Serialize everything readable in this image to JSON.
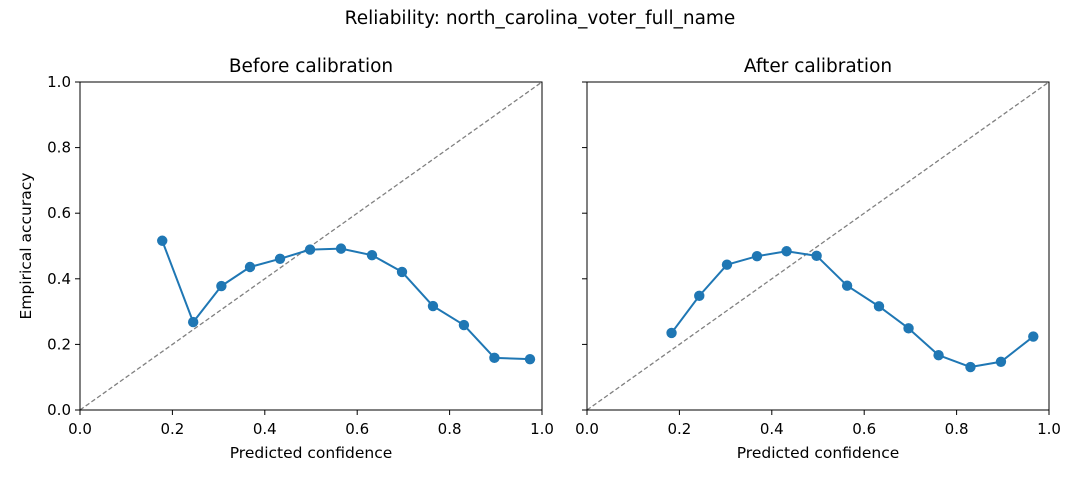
{
  "suptitle": "Reliability: north_carolina_voter_full_name",
  "style": {
    "series_color": "#1f77b4",
    "diagonal_color": "#808080"
  },
  "chart_data": [
    {
      "type": "line",
      "title": "Before calibration",
      "xlabel": "Predicted confidence",
      "ylabel": "Empirical accuracy",
      "xlim": [
        0.0,
        1.0
      ],
      "ylim": [
        0.0,
        1.0
      ],
      "xticks": [
        "0.0",
        "0.2",
        "0.4",
        "0.6",
        "0.8",
        "1.0"
      ],
      "yticks": [
        "0.0",
        "0.2",
        "0.4",
        "0.6",
        "0.8",
        "1.0"
      ],
      "reference_line": "y = x (dashed)",
      "grid": false,
      "x": [
        0.178,
        0.245,
        0.306,
        0.368,
        0.433,
        0.498,
        0.565,
        0.632,
        0.697,
        0.764,
        0.831,
        0.897,
        0.974
      ],
      "y": [
        0.516,
        0.268,
        0.378,
        0.436,
        0.461,
        0.489,
        0.492,
        0.472,
        0.421,
        0.317,
        0.259,
        0.159,
        0.155
      ]
    },
    {
      "type": "line",
      "title": "After calibration",
      "xlabel": "Predicted confidence",
      "ylabel": "",
      "xlim": [
        0.0,
        1.0
      ],
      "ylim": [
        0.0,
        1.0
      ],
      "xticks": [
        "0.0",
        "0.2",
        "0.4",
        "0.6",
        "0.8",
        "1.0"
      ],
      "yticks": [],
      "reference_line": "y = x (dashed)",
      "grid": false,
      "x": [
        0.183,
        0.243,
        0.303,
        0.368,
        0.432,
        0.497,
        0.563,
        0.632,
        0.696,
        0.761,
        0.83,
        0.896,
        0.966
      ],
      "y": [
        0.235,
        0.348,
        0.443,
        0.469,
        0.484,
        0.47,
        0.379,
        0.316,
        0.249,
        0.167,
        0.131,
        0.147,
        0.224
      ]
    }
  ]
}
